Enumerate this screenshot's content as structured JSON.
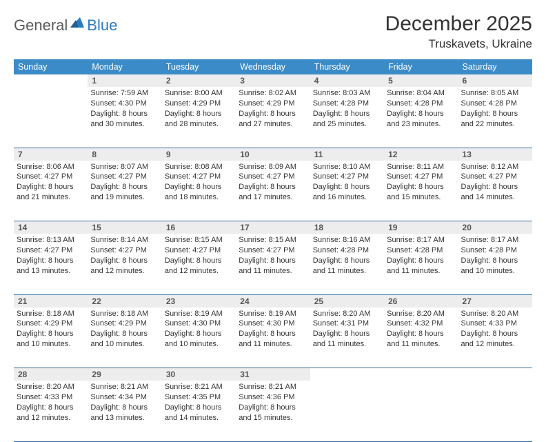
{
  "logo": {
    "text1": "General",
    "text2": "Blue"
  },
  "title": "December 2025",
  "location": "Truskavets, Ukraine",
  "colors": {
    "header_bg": "#3b8bc9",
    "header_text": "#ffffff",
    "daynum_bg": "#ededed",
    "border": "#2e6ca3",
    "logo_blue": "#2b7bbf",
    "logo_gray": "#5a5a5a"
  },
  "day_headers": [
    "Sunday",
    "Monday",
    "Tuesday",
    "Wednesday",
    "Thursday",
    "Friday",
    "Saturday"
  ],
  "weeks": [
    [
      null,
      {
        "n": "1",
        "sunrise": "7:59 AM",
        "sunset": "4:30 PM",
        "daylight": "8 hours and 30 minutes."
      },
      {
        "n": "2",
        "sunrise": "8:00 AM",
        "sunset": "4:29 PM",
        "daylight": "8 hours and 28 minutes."
      },
      {
        "n": "3",
        "sunrise": "8:02 AM",
        "sunset": "4:29 PM",
        "daylight": "8 hours and 27 minutes."
      },
      {
        "n": "4",
        "sunrise": "8:03 AM",
        "sunset": "4:28 PM",
        "daylight": "8 hours and 25 minutes."
      },
      {
        "n": "5",
        "sunrise": "8:04 AM",
        "sunset": "4:28 PM",
        "daylight": "8 hours and 23 minutes."
      },
      {
        "n": "6",
        "sunrise": "8:05 AM",
        "sunset": "4:28 PM",
        "daylight": "8 hours and 22 minutes."
      }
    ],
    [
      {
        "n": "7",
        "sunrise": "8:06 AM",
        "sunset": "4:27 PM",
        "daylight": "8 hours and 21 minutes."
      },
      {
        "n": "8",
        "sunrise": "8:07 AM",
        "sunset": "4:27 PM",
        "daylight": "8 hours and 19 minutes."
      },
      {
        "n": "9",
        "sunrise": "8:08 AM",
        "sunset": "4:27 PM",
        "daylight": "8 hours and 18 minutes."
      },
      {
        "n": "10",
        "sunrise": "8:09 AM",
        "sunset": "4:27 PM",
        "daylight": "8 hours and 17 minutes."
      },
      {
        "n": "11",
        "sunrise": "8:10 AM",
        "sunset": "4:27 PM",
        "daylight": "8 hours and 16 minutes."
      },
      {
        "n": "12",
        "sunrise": "8:11 AM",
        "sunset": "4:27 PM",
        "daylight": "8 hours and 15 minutes."
      },
      {
        "n": "13",
        "sunrise": "8:12 AM",
        "sunset": "4:27 PM",
        "daylight": "8 hours and 14 minutes."
      }
    ],
    [
      {
        "n": "14",
        "sunrise": "8:13 AM",
        "sunset": "4:27 PM",
        "daylight": "8 hours and 13 minutes."
      },
      {
        "n": "15",
        "sunrise": "8:14 AM",
        "sunset": "4:27 PM",
        "daylight": "8 hours and 12 minutes."
      },
      {
        "n": "16",
        "sunrise": "8:15 AM",
        "sunset": "4:27 PM",
        "daylight": "8 hours and 12 minutes."
      },
      {
        "n": "17",
        "sunrise": "8:15 AM",
        "sunset": "4:27 PM",
        "daylight": "8 hours and 11 minutes."
      },
      {
        "n": "18",
        "sunrise": "8:16 AM",
        "sunset": "4:28 PM",
        "daylight": "8 hours and 11 minutes."
      },
      {
        "n": "19",
        "sunrise": "8:17 AM",
        "sunset": "4:28 PM",
        "daylight": "8 hours and 11 minutes."
      },
      {
        "n": "20",
        "sunrise": "8:17 AM",
        "sunset": "4:28 PM",
        "daylight": "8 hours and 10 minutes."
      }
    ],
    [
      {
        "n": "21",
        "sunrise": "8:18 AM",
        "sunset": "4:29 PM",
        "daylight": "8 hours and 10 minutes."
      },
      {
        "n": "22",
        "sunrise": "8:18 AM",
        "sunset": "4:29 PM",
        "daylight": "8 hours and 10 minutes."
      },
      {
        "n": "23",
        "sunrise": "8:19 AM",
        "sunset": "4:30 PM",
        "daylight": "8 hours and 10 minutes."
      },
      {
        "n": "24",
        "sunrise": "8:19 AM",
        "sunset": "4:30 PM",
        "daylight": "8 hours and 11 minutes."
      },
      {
        "n": "25",
        "sunrise": "8:20 AM",
        "sunset": "4:31 PM",
        "daylight": "8 hours and 11 minutes."
      },
      {
        "n": "26",
        "sunrise": "8:20 AM",
        "sunset": "4:32 PM",
        "daylight": "8 hours and 11 minutes."
      },
      {
        "n": "27",
        "sunrise": "8:20 AM",
        "sunset": "4:33 PM",
        "daylight": "8 hours and 12 minutes."
      }
    ],
    [
      {
        "n": "28",
        "sunrise": "8:20 AM",
        "sunset": "4:33 PM",
        "daylight": "8 hours and 12 minutes."
      },
      {
        "n": "29",
        "sunrise": "8:21 AM",
        "sunset": "4:34 PM",
        "daylight": "8 hours and 13 minutes."
      },
      {
        "n": "30",
        "sunrise": "8:21 AM",
        "sunset": "4:35 PM",
        "daylight": "8 hours and 14 minutes."
      },
      {
        "n": "31",
        "sunrise": "8:21 AM",
        "sunset": "4:36 PM",
        "daylight": "8 hours and 15 minutes."
      },
      null,
      null,
      null
    ]
  ],
  "labels": {
    "sunrise": "Sunrise:",
    "sunset": "Sunset:",
    "daylight": "Daylight:"
  }
}
